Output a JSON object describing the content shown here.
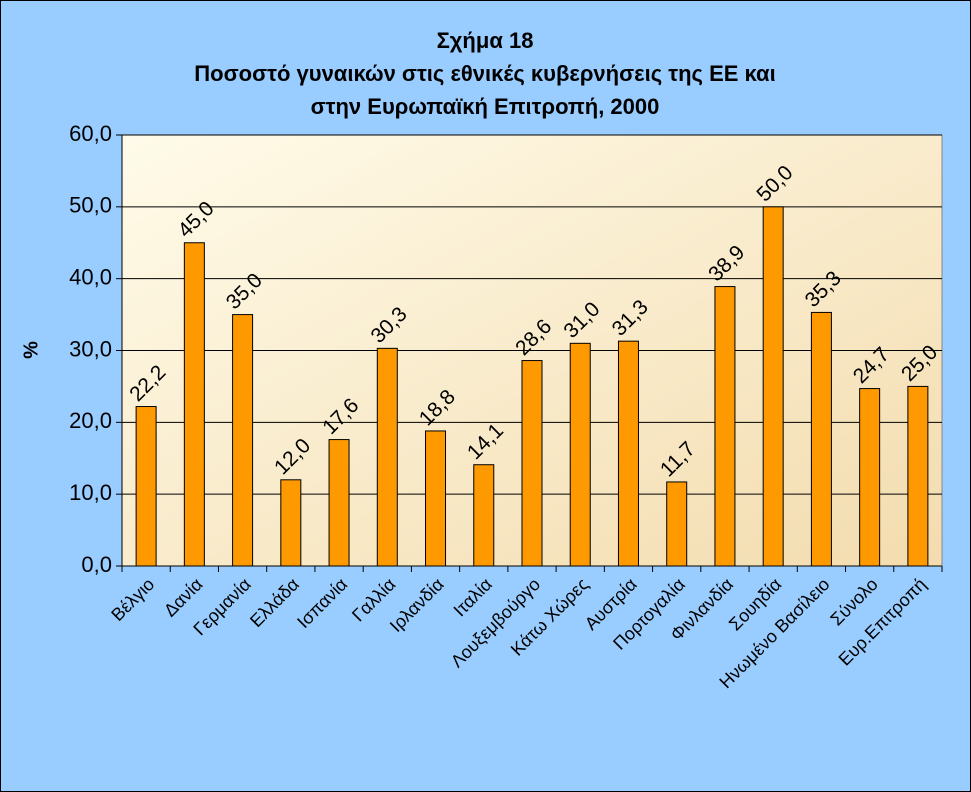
{
  "chart_data": {
    "type": "bar",
    "title": [
      "Σχήμα 18",
      "Ποσοστό γυναικών στις εθνικές κυβερνήσεις της ΕΕ και",
      "στην Ευρωπαϊκή Επιτροπή, 2000"
    ],
    "y_label": "%",
    "categories": [
      "Βέλγιο",
      "Δανία",
      "Γερμανία",
      "Ελλάδα",
      "Ισπανία",
      "Γαλλία",
      "Ιρλανδία",
      "Ιταλία",
      "Λουξεμβούργο",
      "Κάτω Χώρες",
      "Αυστρία",
      "Πορτογαλία",
      "Φινλανδία",
      "Σουηδία",
      "Ηνωμένο Βασίλειο",
      "Σύνολο",
      "Ευρ.Επιτροπή"
    ],
    "values": [
      22.2,
      45.0,
      35.0,
      12.0,
      17.6,
      30.3,
      18.8,
      14.1,
      28.6,
      31.0,
      31.3,
      11.7,
      38.9,
      50.0,
      35.3,
      24.7,
      25.0
    ],
    "value_labels": [
      "22,2",
      "45,0",
      "35,0",
      "12,0",
      "17,6",
      "30,3",
      "18,8",
      "14,1",
      "28,6",
      "31,0",
      "31,3",
      "11,7",
      "38,9",
      "50,0",
      "35,3",
      "24,7",
      "25,0"
    ],
    "color": "#ff9900",
    "ylim": [
      0,
      60
    ],
    "yticks": [
      {
        "value": 0,
        "label": "0,0"
      },
      {
        "value": 10,
        "label": "10,0"
      },
      {
        "value": 20,
        "label": "20,0"
      },
      {
        "value": 30,
        "label": "30,0"
      },
      {
        "value": 40,
        "label": "40,0"
      },
      {
        "value": 50,
        "label": "50,0"
      },
      {
        "value": 60,
        "label": "60,0"
      }
    ],
    "grid": true
  }
}
